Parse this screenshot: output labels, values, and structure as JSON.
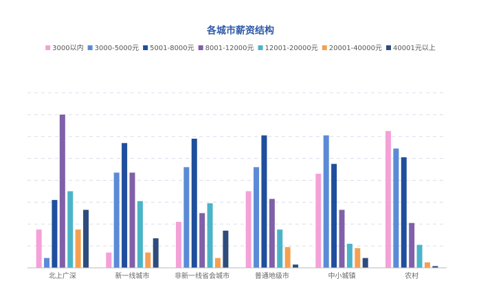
{
  "chart_data": {
    "type": "bar",
    "title": "各城市薪资结构",
    "categories": [
      "北上广深",
      "新一线城市",
      "非新一线省会城市",
      "普通地级市",
      "中小城镇",
      "农村"
    ],
    "series": [
      {
        "name": "3000以内",
        "color": "#f4a1d8",
        "values": [
          1.75,
          0.7,
          2.1,
          3.5,
          4.3,
          6.25
        ]
      },
      {
        "name": "3000-5000元",
        "color": "#5b8bd6",
        "values": [
          0.45,
          4.35,
          4.6,
          4.6,
          6.05,
          5.45
        ]
      },
      {
        "name": "5001-8000元",
        "color": "#1f4e9c",
        "values": [
          3.1,
          5.7,
          5.9,
          6.05,
          4.75,
          5.05
        ]
      },
      {
        "name": "8001-12000元",
        "color": "#8060a8",
        "values": [
          7.0,
          4.35,
          2.5,
          3.15,
          2.65,
          2.05
        ]
      },
      {
        "name": "12001-20000元",
        "color": "#4bb4c8",
        "values": [
          3.5,
          3.05,
          2.95,
          1.75,
          1.1,
          1.05
        ]
      },
      {
        "name": "20001-40000元",
        "color": "#f5a050",
        "values": [
          1.75,
          0.7,
          0.45,
          0.95,
          0.9,
          0.25
        ]
      },
      {
        "name": "40001元以上",
        "color": "#2e4d7b",
        "values": [
          2.65,
          1.35,
          1.7,
          0.15,
          0.45,
          0.08
        ]
      }
    ],
    "ylim": [
      0,
      8
    ],
    "grid": true,
    "grid_style": "dashed",
    "legend_position": "top-center",
    "title_color": "#2f5aa8"
  }
}
